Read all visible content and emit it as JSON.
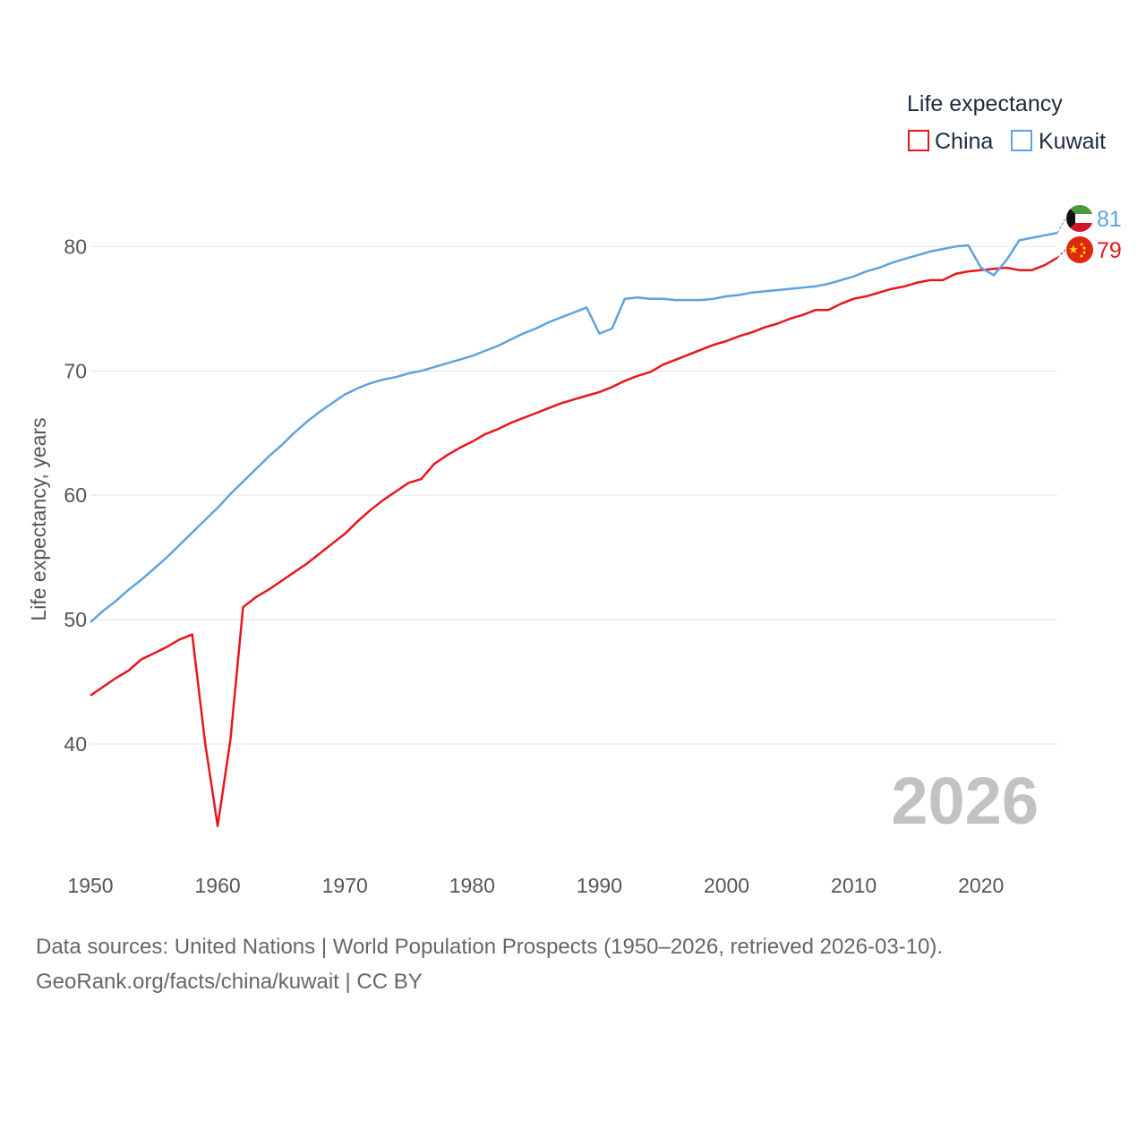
{
  "chart_data": {
    "type": "line",
    "title": "",
    "xlabel": "",
    "ylabel": "Life expectancy, years",
    "xlim": [
      1950,
      2026
    ],
    "ylim": [
      31,
      86
    ],
    "yticks": [
      40,
      50,
      60,
      70,
      80
    ],
    "xticks": [
      1950,
      1960,
      1970,
      1980,
      1990,
      2000,
      2010,
      2020
    ],
    "ytick_labels": [
      "40",
      "50",
      "60",
      "70",
      "80"
    ],
    "xtick_labels": [
      "1950",
      "1960",
      "1970",
      "1980",
      "1990",
      "2000",
      "2010",
      "2020"
    ],
    "grid": true,
    "legend_title": "Life expectancy",
    "legend_position": "top-right",
    "year_stamp": "2026",
    "series": [
      {
        "name": "China",
        "color": "#e8161c",
        "end_label": "79",
        "flag_icon": "china-flag-icon",
        "points": [
          [
            1950,
            43.9
          ],
          [
            1951,
            44.6
          ],
          [
            1952,
            45.3
          ],
          [
            1953,
            45.9
          ],
          [
            1954,
            46.8
          ],
          [
            1955,
            47.3
          ],
          [
            1956,
            47.8
          ],
          [
            1957,
            48.4
          ],
          [
            1958,
            48.8
          ],
          [
            1959,
            40.2
          ],
          [
            1960,
            33.4
          ],
          [
            1961,
            40.3
          ],
          [
            1962,
            51.0
          ],
          [
            1963,
            51.8
          ],
          [
            1964,
            52.4
          ],
          [
            1965,
            53.1
          ],
          [
            1966,
            53.8
          ],
          [
            1967,
            54.5
          ],
          [
            1968,
            55.3
          ],
          [
            1969,
            56.1
          ],
          [
            1970,
            56.9
          ],
          [
            1971,
            57.9
          ],
          [
            1972,
            58.8
          ],
          [
            1973,
            59.6
          ],
          [
            1974,
            60.3
          ],
          [
            1975,
            61.0
          ],
          [
            1976,
            61.3
          ],
          [
            1977,
            62.5
          ],
          [
            1978,
            63.2
          ],
          [
            1979,
            63.8
          ],
          [
            1980,
            64.3
          ],
          [
            1981,
            64.9
          ],
          [
            1982,
            65.3
          ],
          [
            1983,
            65.8
          ],
          [
            1984,
            66.2
          ],
          [
            1985,
            66.6
          ],
          [
            1986,
            67.0
          ],
          [
            1987,
            67.4
          ],
          [
            1988,
            67.7
          ],
          [
            1989,
            68.0
          ],
          [
            1990,
            68.3
          ],
          [
            1991,
            68.7
          ],
          [
            1992,
            69.2
          ],
          [
            1993,
            69.6
          ],
          [
            1994,
            69.9
          ],
          [
            1995,
            70.5
          ],
          [
            1996,
            70.9
          ],
          [
            1997,
            71.3
          ],
          [
            1998,
            71.7
          ],
          [
            1999,
            72.1
          ],
          [
            2000,
            72.4
          ],
          [
            2001,
            72.8
          ],
          [
            2002,
            73.1
          ],
          [
            2003,
            73.5
          ],
          [
            2004,
            73.8
          ],
          [
            2005,
            74.2
          ],
          [
            2006,
            74.5
          ],
          [
            2007,
            74.9
          ],
          [
            2008,
            74.9
          ],
          [
            2009,
            75.4
          ],
          [
            2010,
            75.8
          ],
          [
            2011,
            76.0
          ],
          [
            2012,
            76.3
          ],
          [
            2013,
            76.6
          ],
          [
            2014,
            76.8
          ],
          [
            2015,
            77.1
          ],
          [
            2016,
            77.3
          ],
          [
            2017,
            77.3
          ],
          [
            2018,
            77.8
          ],
          [
            2019,
            78.0
          ],
          [
            2020,
            78.1
          ],
          [
            2021,
            78.2
          ],
          [
            2022,
            78.3
          ],
          [
            2023,
            78.1
          ],
          [
            2024,
            78.1
          ],
          [
            2025,
            78.5
          ],
          [
            2026,
            79.1
          ]
        ]
      },
      {
        "name": "Kuwait",
        "color": "#5da3e0",
        "end_label": "81",
        "flag_icon": "kuwait-flag-icon",
        "points": [
          [
            1950,
            49.8
          ],
          [
            1951,
            50.7
          ],
          [
            1952,
            51.5
          ],
          [
            1953,
            52.4
          ],
          [
            1954,
            53.2
          ],
          [
            1955,
            54.1
          ],
          [
            1956,
            55.0
          ],
          [
            1957,
            56.0
          ],
          [
            1958,
            57.0
          ],
          [
            1959,
            58.0
          ],
          [
            1960,
            59.0
          ],
          [
            1961,
            60.1
          ],
          [
            1962,
            61.1
          ],
          [
            1963,
            62.1
          ],
          [
            1964,
            63.1
          ],
          [
            1965,
            64.0
          ],
          [
            1966,
            65.0
          ],
          [
            1967,
            65.9
          ],
          [
            1968,
            66.7
          ],
          [
            1969,
            67.4
          ],
          [
            1970,
            68.1
          ],
          [
            1971,
            68.6
          ],
          [
            1972,
            69.0
          ],
          [
            1973,
            69.3
          ],
          [
            1974,
            69.5
          ],
          [
            1975,
            69.8
          ],
          [
            1976,
            70.0
          ],
          [
            1977,
            70.3
          ],
          [
            1978,
            70.6
          ],
          [
            1979,
            70.9
          ],
          [
            1980,
            71.2
          ],
          [
            1981,
            71.6
          ],
          [
            1982,
            72.0
          ],
          [
            1983,
            72.5
          ],
          [
            1984,
            73.0
          ],
          [
            1985,
            73.4
          ],
          [
            1986,
            73.9
          ],
          [
            1987,
            74.3
          ],
          [
            1988,
            74.7
          ],
          [
            1989,
            75.1
          ],
          [
            1990,
            73.0
          ],
          [
            1991,
            73.4
          ],
          [
            1992,
            75.8
          ],
          [
            1993,
            75.9
          ],
          [
            1994,
            75.8
          ],
          [
            1995,
            75.8
          ],
          [
            1996,
            75.7
          ],
          [
            1997,
            75.7
          ],
          [
            1998,
            75.7
          ],
          [
            1999,
            75.8
          ],
          [
            2000,
            76.0
          ],
          [
            2001,
            76.1
          ],
          [
            2002,
            76.3
          ],
          [
            2003,
            76.4
          ],
          [
            2004,
            76.5
          ],
          [
            2005,
            76.6
          ],
          [
            2006,
            76.7
          ],
          [
            2007,
            76.8
          ],
          [
            2008,
            77.0
          ],
          [
            2009,
            77.3
          ],
          [
            2010,
            77.6
          ],
          [
            2011,
            78.0
          ],
          [
            2012,
            78.3
          ],
          [
            2013,
            78.7
          ],
          [
            2014,
            79.0
          ],
          [
            2015,
            79.3
          ],
          [
            2016,
            79.6
          ],
          [
            2017,
            79.8
          ],
          [
            2018,
            80.0
          ],
          [
            2019,
            80.1
          ],
          [
            2020,
            78.3
          ],
          [
            2021,
            77.7
          ],
          [
            2022,
            78.9
          ],
          [
            2023,
            80.5
          ],
          [
            2024,
            80.7
          ],
          [
            2025,
            80.9
          ],
          [
            2026,
            81.1
          ]
        ]
      }
    ]
  },
  "footer": {
    "sources": "Data sources: United Nations | World Population Prospects (1950–2026, retrieved 2026-03-10).",
    "credit": "GeoRank.org/facts/china/kuwait | CC BY"
  }
}
